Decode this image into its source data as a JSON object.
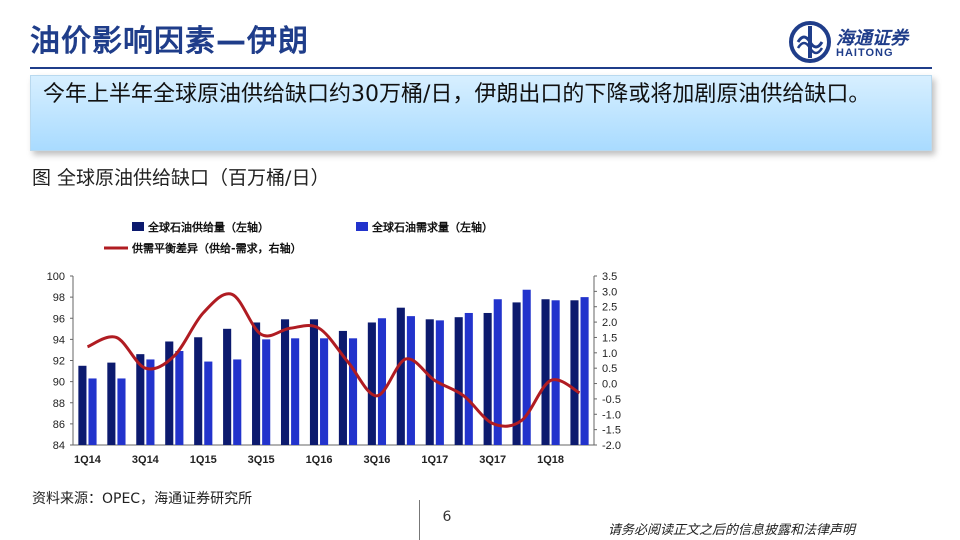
{
  "header": {
    "title": "油价影响因素—伊朗",
    "logo_cn": "海通证券",
    "logo_en": "HAITONG",
    "logo_icon": "haitong-logo-icon"
  },
  "callout": {
    "text": "今年上半年全球原油供给缺口约30万桶/日，伊朗出口的下降或将加剧原油供给缺口。"
  },
  "figure": {
    "title": "图  全球原油供给缺口（百万桶/日）"
  },
  "footer": {
    "source": "资料来源：OPEC，海通证券研究所",
    "page_number": "6",
    "disclaimer": "请务必阅读正文之后的信息披露和法律声明"
  },
  "colors": {
    "supply": "#0c1a6e",
    "demand": "#2233cc",
    "balance": "#b01c22",
    "brand": "#1f3d8a"
  },
  "chart_data": {
    "type": "bar",
    "categories": [
      "1Q14",
      "2Q14",
      "3Q14",
      "4Q14",
      "1Q15",
      "2Q15",
      "3Q15",
      "4Q15",
      "1Q16",
      "2Q16",
      "3Q16",
      "4Q16",
      "1Q17",
      "2Q17",
      "3Q17",
      "4Q17",
      "1Q18",
      "2Q18"
    ],
    "x_tick_labels": [
      "1Q14",
      "3Q14",
      "1Q15",
      "3Q15",
      "1Q16",
      "3Q16",
      "1Q17",
      "3Q17",
      "1Q18"
    ],
    "series": [
      {
        "name": "全球石油供给量（左轴）",
        "type": "bar",
        "axis": "left",
        "values": [
          91.5,
          91.8,
          92.6,
          93.8,
          94.2,
          95.0,
          95.6,
          95.9,
          95.9,
          94.8,
          95.6,
          97.0,
          95.9,
          96.1,
          96.5,
          97.5,
          97.8,
          97.7
        ]
      },
      {
        "name": "全球石油需求量（左轴）",
        "type": "bar",
        "axis": "left",
        "values": [
          90.3,
          90.3,
          92.1,
          92.9,
          91.9,
          92.1,
          94.0,
          94.1,
          94.1,
          94.1,
          96.0,
          96.2,
          95.8,
          96.5,
          97.8,
          98.7,
          97.7,
          98.0
        ]
      },
      {
        "name": "供需平衡差异（供给-需求，右轴）",
        "type": "line",
        "axis": "right",
        "values": [
          1.2,
          1.5,
          0.5,
          0.9,
          2.3,
          2.9,
          1.6,
          1.8,
          1.8,
          0.7,
          -0.4,
          0.8,
          0.1,
          -0.4,
          -1.3,
          -1.2,
          0.1,
          -0.3
        ]
      }
    ],
    "y_left": {
      "min": 84,
      "max": 100,
      "ticks": [
        84,
        86,
        88,
        90,
        92,
        94,
        96,
        98,
        100
      ]
    },
    "y_right": {
      "min": -2.0,
      "max": 3.5,
      "ticks": [
        "3.5",
        "3.0",
        "2.5",
        "2.0",
        "1.5",
        "1.0",
        "0.5",
        "0.0",
        "-0.5",
        "-1.0",
        "-1.5",
        "-2.0"
      ]
    },
    "legend_position": "top-left"
  }
}
